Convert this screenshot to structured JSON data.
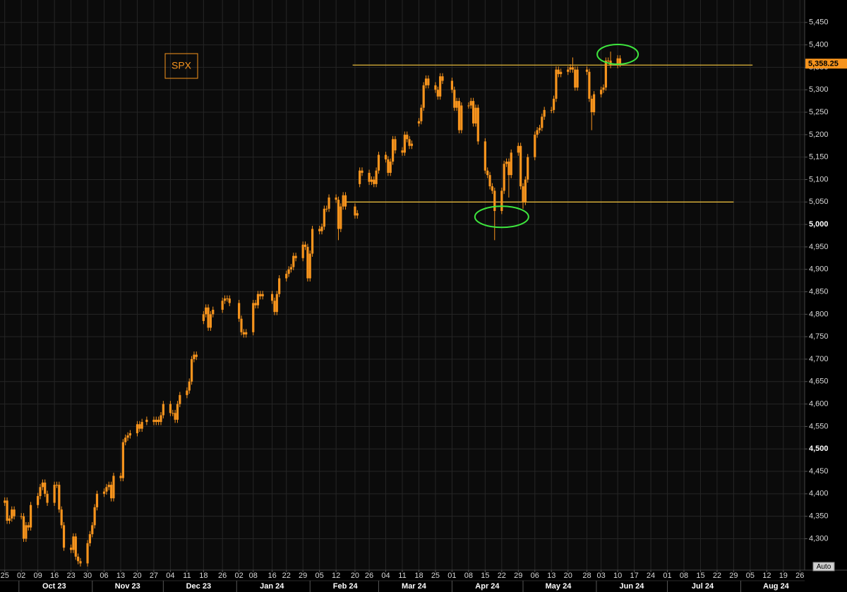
{
  "chart_data": {
    "type": "candlestick",
    "symbol": "SPX",
    "color": "#f7941d",
    "grid": true,
    "xlim": [
      "2023-09-23",
      "2024-08-28"
    ],
    "ylim": [
      4230,
      5500
    ],
    "yticks": [
      {
        "value": 4300,
        "label": "4,300"
      },
      {
        "value": 4350,
        "label": "4,350"
      },
      {
        "value": 4400,
        "label": "4,400"
      },
      {
        "value": 4450,
        "label": "4,450"
      },
      {
        "value": 4500,
        "label": "4,500"
      },
      {
        "value": 4550,
        "label": "4,550"
      },
      {
        "value": 4600,
        "label": "4,600"
      },
      {
        "value": 4650,
        "label": "4,650"
      },
      {
        "value": 4700,
        "label": "4,700"
      },
      {
        "value": 4750,
        "label": "4,750"
      },
      {
        "value": 4800,
        "label": "4,800"
      },
      {
        "value": 4850,
        "label": "4,850"
      },
      {
        "value": 4900,
        "label": "4,900"
      },
      {
        "value": 4950,
        "label": "4,950"
      },
      {
        "value": 5000,
        "label": "5,000"
      },
      {
        "value": 5050,
        "label": "5,050"
      },
      {
        "value": 5100,
        "label": "5,100"
      },
      {
        "value": 5150,
        "label": "5,150"
      },
      {
        "value": 5200,
        "label": "5,200"
      },
      {
        "value": 5250,
        "label": "5,250"
      },
      {
        "value": 5300,
        "label": "5,300"
      },
      {
        "value": 5350,
        "label": "5,350"
      },
      {
        "value": 5400,
        "label": "5,400"
      },
      {
        "value": 5450,
        "label": "5,450"
      }
    ],
    "xticks": [
      {
        "value": "2023-09-25",
        "label": "25"
      },
      {
        "value": "2023-10-02",
        "label": "02"
      },
      {
        "value": "2023-10-09",
        "label": "09"
      },
      {
        "value": "2023-10-16",
        "label": "16"
      },
      {
        "value": "2023-10-23",
        "label": "23"
      },
      {
        "value": "2023-10-30",
        "label": "30"
      },
      {
        "value": "2023-11-06",
        "label": "06"
      },
      {
        "value": "2023-11-13",
        "label": "13"
      },
      {
        "value": "2023-11-20",
        "label": "20"
      },
      {
        "value": "2023-11-27",
        "label": "27"
      },
      {
        "value": "2023-12-04",
        "label": "04"
      },
      {
        "value": "2023-12-11",
        "label": "11"
      },
      {
        "value": "2023-12-18",
        "label": "18"
      },
      {
        "value": "2023-12-26",
        "label": "26"
      },
      {
        "value": "2024-01-02",
        "label": "02"
      },
      {
        "value": "2024-01-08",
        "label": "08"
      },
      {
        "value": "2024-01-16",
        "label": "16"
      },
      {
        "value": "2024-01-22",
        "label": "22"
      },
      {
        "value": "2024-01-29",
        "label": "29"
      },
      {
        "value": "2024-02-05",
        "label": "05"
      },
      {
        "value": "2024-02-12",
        "label": "12"
      },
      {
        "value": "2024-02-20",
        "label": "20"
      },
      {
        "value": "2024-02-26",
        "label": "26"
      },
      {
        "value": "2024-03-04",
        "label": "04"
      },
      {
        "value": "2024-03-11",
        "label": "11"
      },
      {
        "value": "2024-03-18",
        "label": "18"
      },
      {
        "value": "2024-03-25",
        "label": "25"
      },
      {
        "value": "2024-04-01",
        "label": "01"
      },
      {
        "value": "2024-04-08",
        "label": "08"
      },
      {
        "value": "2024-04-15",
        "label": "15"
      },
      {
        "value": "2024-04-22",
        "label": "22"
      },
      {
        "value": "2024-04-29",
        "label": "29"
      },
      {
        "value": "2024-05-06",
        "label": "06"
      },
      {
        "value": "2024-05-13",
        "label": "13"
      },
      {
        "value": "2024-05-20",
        "label": "20"
      },
      {
        "value": "2024-05-28",
        "label": "28"
      },
      {
        "value": "2024-06-03",
        "label": "03"
      },
      {
        "value": "2024-06-10",
        "label": "10"
      },
      {
        "value": "2024-06-17",
        "label": "17"
      },
      {
        "value": "2024-06-24",
        "label": "24"
      },
      {
        "value": "2024-07-01",
        "label": "01"
      },
      {
        "value": "2024-07-08",
        "label": "08"
      },
      {
        "value": "2024-07-15",
        "label": "15"
      },
      {
        "value": "2024-07-22",
        "label": "22"
      },
      {
        "value": "2024-07-29",
        "label": "29"
      },
      {
        "value": "2024-08-05",
        "label": "05"
      },
      {
        "value": "2024-08-12",
        "label": "12"
      },
      {
        "value": "2024-08-19",
        "label": "19"
      },
      {
        "value": "2024-08-26",
        "label": "26"
      }
    ],
    "month_labels": [
      {
        "value": "2023-10-01",
        "label": "Oct 23"
      },
      {
        "value": "2023-11-01",
        "label": "Nov 23"
      },
      {
        "value": "2023-12-01",
        "label": "Dec 23"
      },
      {
        "value": "2024-01-01",
        "label": "Jan 24"
      },
      {
        "value": "2024-02-01",
        "label": "Feb 24"
      },
      {
        "value": "2024-03-01",
        "label": "Mar 24"
      },
      {
        "value": "2024-04-01",
        "label": "Apr 24"
      },
      {
        "value": "2024-05-01",
        "label": "May 24"
      },
      {
        "value": "2024-06-01",
        "label": "Jun 24"
      },
      {
        "value": "2024-07-01",
        "label": "Jul 24"
      },
      {
        "value": "2024-08-01",
        "label": "Aug 24"
      }
    ],
    "x": [
      "2023-09-25",
      "2023-09-26",
      "2023-09-27",
      "2023-09-28",
      "2023-09-29",
      "2023-10-02",
      "2023-10-03",
      "2023-10-04",
      "2023-10-05",
      "2023-10-06",
      "2023-10-09",
      "2023-10-10",
      "2023-10-11",
      "2023-10-12",
      "2023-10-13",
      "2023-10-16",
      "2023-10-17",
      "2023-10-18",
      "2023-10-19",
      "2023-10-20",
      "2023-10-23",
      "2023-10-24",
      "2023-10-25",
      "2023-10-26",
      "2023-10-27",
      "2023-10-30",
      "2023-10-31",
      "2023-11-01",
      "2023-11-02",
      "2023-11-03",
      "2023-11-06",
      "2023-11-07",
      "2023-11-08",
      "2023-11-09",
      "2023-11-10",
      "2023-11-13",
      "2023-11-14",
      "2023-11-15",
      "2023-11-16",
      "2023-11-17",
      "2023-11-20",
      "2023-11-21",
      "2023-11-22",
      "2023-11-24",
      "2023-11-27",
      "2023-11-28",
      "2023-11-29",
      "2023-11-30",
      "2023-12-01",
      "2023-12-04",
      "2023-12-05",
      "2023-12-06",
      "2023-12-07",
      "2023-12-08",
      "2023-12-11",
      "2023-12-12",
      "2023-12-13",
      "2023-12-14",
      "2023-12-15",
      "2023-12-18",
      "2023-12-19",
      "2023-12-20",
      "2023-12-21",
      "2023-12-22",
      "2023-12-26",
      "2023-12-27",
      "2023-12-28",
      "2023-12-29",
      "2024-01-02",
      "2024-01-03",
      "2024-01-04",
      "2024-01-05",
      "2024-01-08",
      "2024-01-09",
      "2024-01-10",
      "2024-01-11",
      "2024-01-12",
      "2024-01-16",
      "2024-01-17",
      "2024-01-18",
      "2024-01-19",
      "2024-01-22",
      "2024-01-23",
      "2024-01-24",
      "2024-01-25",
      "2024-01-26",
      "2024-01-29",
      "2024-01-30",
      "2024-01-31",
      "2024-02-01",
      "2024-02-02",
      "2024-02-05",
      "2024-02-06",
      "2024-02-07",
      "2024-02-08",
      "2024-02-09",
      "2024-02-12",
      "2024-02-13",
      "2024-02-14",
      "2024-02-15",
      "2024-02-16",
      "2024-02-20",
      "2024-02-21",
      "2024-02-22",
      "2024-02-23",
      "2024-02-26",
      "2024-02-27",
      "2024-02-28",
      "2024-02-29",
      "2024-03-01",
      "2024-03-04",
      "2024-03-05",
      "2024-03-06",
      "2024-03-07",
      "2024-03-08",
      "2024-03-11",
      "2024-03-12",
      "2024-03-13",
      "2024-03-14",
      "2024-03-15",
      "2024-03-18",
      "2024-03-19",
      "2024-03-20",
      "2024-03-21",
      "2024-03-22",
      "2024-03-25",
      "2024-03-26",
      "2024-03-27",
      "2024-03-28",
      "2024-04-01",
      "2024-04-02",
      "2024-04-03",
      "2024-04-04",
      "2024-04-05",
      "2024-04-08",
      "2024-04-09",
      "2024-04-10",
      "2024-04-11",
      "2024-04-12",
      "2024-04-15",
      "2024-04-16",
      "2024-04-17",
      "2024-04-18",
      "2024-04-19",
      "2024-04-22",
      "2024-04-23",
      "2024-04-24",
      "2024-04-25",
      "2024-04-26",
      "2024-04-29",
      "2024-04-30",
      "2024-05-01",
      "2024-05-02",
      "2024-05-03",
      "2024-05-06",
      "2024-05-07",
      "2024-05-08",
      "2024-05-09",
      "2024-05-10",
      "2024-05-13",
      "2024-05-14",
      "2024-05-15",
      "2024-05-16",
      "2024-05-17",
      "2024-05-20",
      "2024-05-21",
      "2024-05-22",
      "2024-05-23",
      "2024-05-24",
      "2024-05-28",
      "2024-05-29",
      "2024-05-30",
      "2024-05-31",
      "2024-06-03",
      "2024-06-04",
      "2024-06-05",
      "2024-06-06",
      "2024-06-07",
      "2024-06-10",
      "2024-06-11"
    ],
    "open": [
      4380,
      4385,
      4340,
      4345,
      4365,
      4350,
      4350,
      4300,
      4330,
      4325,
      4375,
      4395,
      4415,
      4425,
      4400,
      4380,
      4420,
      4420,
      4365,
      4330,
      4280,
      4275,
      4305,
      4260,
      4250,
      4245,
      4290,
      4310,
      4330,
      4370,
      4400,
      4405,
      4415,
      4420,
      4390,
      4440,
      4435,
      4515,
      4525,
      4530,
      4535,
      4555,
      4545,
      4560,
      4565,
      4560,
      4565,
      4560,
      4575,
      4600,
      4580,
      4580,
      4565,
      4600,
      4620,
      4630,
      4650,
      4700,
      4710,
      4785,
      4800,
      4815,
      4770,
      4800,
      4810,
      4830,
      4835,
      4835,
      4825,
      4790,
      4760,
      4755,
      4760,
      4825,
      4820,
      4845,
      4840,
      4845,
      4830,
      4805,
      4845,
      4880,
      4890,
      4900,
      4905,
      4930,
      4925,
      4955,
      4950,
      4880,
      4935,
      4990,
      4985,
      4995,
      5035,
      5035,
      5060,
      5055,
      4990,
      5040,
      5065,
      5040,
      5020,
      5090,
      5120,
      5115,
      5095,
      5100,
      5090,
      5120,
      5155,
      5145,
      5115,
      5140,
      5190,
      5165,
      5160,
      5200,
      5190,
      5175,
      5225,
      5230,
      5260,
      5310,
      5325,
      5310,
      5300,
      5285,
      5330,
      5320,
      5300,
      5260,
      5275,
      5210,
      5265,
      5265,
      5275,
      5225,
      5260,
      5185,
      5120,
      5110,
      5085,
      5075,
      5030,
      5075,
      5135,
      5140,
      5110,
      5160,
      5175,
      5085,
      5050,
      5100,
      5150,
      5200,
      5210,
      5215,
      5240,
      5255,
      5255,
      5280,
      5345,
      5335,
      5340,
      5345,
      5350,
      5345,
      5305,
      5345,
      5340,
      5280,
      5250,
      5290,
      5300,
      5305,
      5365,
      5365,
      5355,
      5370
    ],
    "high": [
      4392,
      4392,
      4352,
      4372,
      4372,
      4357,
      4357,
      4337,
      4337,
      4382,
      4402,
      4422,
      4432,
      4432,
      4407,
      4427,
      4427,
      4427,
      4372,
      4337,
      4287,
      4312,
      4312,
      4267,
      4257,
      4297,
      4317,
      4337,
      4377,
      4407,
      4412,
      4422,
      4427,
      4427,
      4447,
      4447,
      4522,
      4532,
      4537,
      4542,
      4562,
      4562,
      4567,
      4572,
      4572,
      4572,
      4572,
      4582,
      4607,
      4607,
      4587,
      4587,
      4607,
      4627,
      4637,
      4657,
      4707,
      4717,
      4717,
      4807,
      4822,
      4822,
      4807,
      4817,
      4837,
      4842,
      4842,
      4842,
      4832,
      4797,
      4767,
      4767,
      4832,
      4832,
      4852,
      4852,
      4852,
      4852,
      4837,
      4852,
      4887,
      4897,
      4907,
      4912,
      4937,
      4937,
      4962,
      4962,
      4957,
      4942,
      4997,
      4997,
      5002,
      5042,
      5042,
      5067,
      5067,
      5062,
      5047,
      5072,
      5072,
      5047,
      5032,
      5127,
      5127,
      5122,
      5107,
      5107,
      5127,
      5162,
      5162,
      5152,
      5147,
      5197,
      5197,
      5172,
      5207,
      5207,
      5197,
      5187,
      5237,
      5267,
      5317,
      5332,
      5332,
      5317,
      5307,
      5337,
      5337,
      5327,
      5307,
      5282,
      5282,
      5272,
      5272,
      5282,
      5282,
      5267,
      5267,
      5192,
      5127,
      5117,
      5092,
      5082,
      5082,
      5142,
      5147,
      5147,
      5167,
      5182,
      5182,
      5092,
      5107,
      5157,
      5207,
      5217,
      5222,
      5247,
      5262,
      5262,
      5287,
      5352,
      5352,
      5347,
      5352,
      5357,
      5372,
      5352,
      5352,
      5352,
      5347,
      5287,
      5297,
      5307,
      5312,
      5372,
      5372,
      5385,
      5377,
      5377
    ],
    "low": [
      4373,
      4333,
      4333,
      4338,
      4343,
      4343,
      4293,
      4293,
      4318,
      4318,
      4368,
      4388,
      4408,
      4393,
      4373,
      4373,
      4413,
      4358,
      4323,
      4273,
      4268,
      4268,
      4253,
      4243,
      4238,
      4238,
      4283,
      4303,
      4323,
      4363,
      4393,
      4398,
      4408,
      4383,
      4383,
      4428,
      4428,
      4508,
      4518,
      4523,
      4528,
      4538,
      4538,
      4553,
      4553,
      4553,
      4553,
      4553,
      4568,
      4573,
      4573,
      4558,
      4558,
      4593,
      4613,
      4623,
      4643,
      4693,
      4698,
      4778,
      4793,
      4763,
      4763,
      4793,
      4803,
      4823,
      4828,
      4818,
      4783,
      4753,
      4748,
      4748,
      4753,
      4813,
      4813,
      4833,
      4833,
      4823,
      4798,
      4798,
      4838,
      4873,
      4883,
      4893,
      4898,
      4918,
      4918,
      4943,
      4873,
      4873,
      4928,
      4978,
      4978,
      4988,
      5028,
      5028,
      5048,
      4965,
      4983,
      5033,
      5033,
      5013,
      5013,
      5083,
      5108,
      5088,
      5088,
      5083,
      5083,
      5113,
      5138,
      5108,
      5108,
      5133,
      5158,
      5153,
      5153,
      5183,
      5168,
      5168,
      5218,
      5223,
      5253,
      5303,
      5303,
      5293,
      5278,
      5278,
      5313,
      5293,
      5253,
      5253,
      5203,
      5203,
      5258,
      5258,
      5218,
      5218,
      5178,
      5113,
      5103,
      5078,
      5068,
      4965,
      5023,
      5068,
      5128,
      5060,
      5103,
      5153,
      5078,
      5035,
      5043,
      5093,
      5143,
      5193,
      5203,
      5208,
      5233,
      5248,
      5248,
      5273,
      5328,
      5328,
      5333,
      5338,
      5338,
      5298,
      5298,
      5333,
      5273,
      5210,
      5243,
      5283,
      5293,
      5298,
      5358,
      5348,
      5348,
      5351
    ],
    "close": [
      4385,
      4340,
      4345,
      4365,
      4350,
      4350,
      4300,
      4330,
      4325,
      4375,
      4395,
      4415,
      4425,
      4400,
      4380,
      4420,
      4420,
      4365,
      4330,
      4280,
      4275,
      4305,
      4260,
      4250,
      4245,
      4290,
      4310,
      4330,
      4370,
      4400,
      4405,
      4415,
      4420,
      4390,
      4440,
      4435,
      4515,
      4525,
      4530,
      4535,
      4555,
      4545,
      4560,
      4565,
      4560,
      4565,
      4560,
      4575,
      4600,
      4580,
      4580,
      4565,
      4600,
      4620,
      4630,
      4650,
      4700,
      4710,
      4705,
      4800,
      4815,
      4770,
      4800,
      4810,
      4830,
      4835,
      4835,
      4825,
      4790,
      4760,
      4755,
      4760,
      4825,
      4820,
      4845,
      4840,
      4845,
      4830,
      4805,
      4845,
      4880,
      4890,
      4900,
      4905,
      4930,
      4925,
      4955,
      4950,
      4880,
      4935,
      4990,
      4985,
      4995,
      5035,
      5035,
      5060,
      5055,
      4990,
      5040,
      5065,
      5040,
      5020,
      5025,
      5120,
      5115,
      5095,
      5100,
      5090,
      5120,
      5155,
      5145,
      5115,
      5140,
      5190,
      5165,
      5160,
      5200,
      5190,
      5175,
      5180,
      5230,
      5260,
      5310,
      5325,
      5310,
      5300,
      5285,
      5330,
      5320,
      5300,
      5260,
      5275,
      5210,
      5265,
      5265,
      5275,
      5225,
      5260,
      5185,
      5120,
      5110,
      5085,
      5075,
      5030,
      5075,
      5135,
      5140,
      5110,
      5160,
      5175,
      5085,
      5050,
      5100,
      5150,
      5200,
      5210,
      5215,
      5240,
      5255,
      5255,
      5280,
      5345,
      5335,
      5340,
      5345,
      5350,
      5345,
      5305,
      5345,
      5340,
      5280,
      5250,
      5290,
      5300,
      5305,
      5365,
      5365,
      5355,
      5370,
      5358.25
    ],
    "last_price": {
      "value": 5358.25,
      "label": "5,358.25"
    },
    "levels": [
      {
        "value": 5355,
        "start": "2024-02-19",
        "end": "2024-08-06",
        "color": "#e3b83b"
      },
      {
        "value": 5050,
        "start": "2024-02-16",
        "end": "2024-07-29",
        "color": "#e3b83b"
      }
    ],
    "highlights": [
      {
        "x": "2024-04-22",
        "y": 5017,
        "color": "#3ee63e"
      },
      {
        "x": "2024-06-10",
        "y": 5379,
        "color": "#3ee63e"
      }
    ],
    "auto_button": "Auto"
  }
}
